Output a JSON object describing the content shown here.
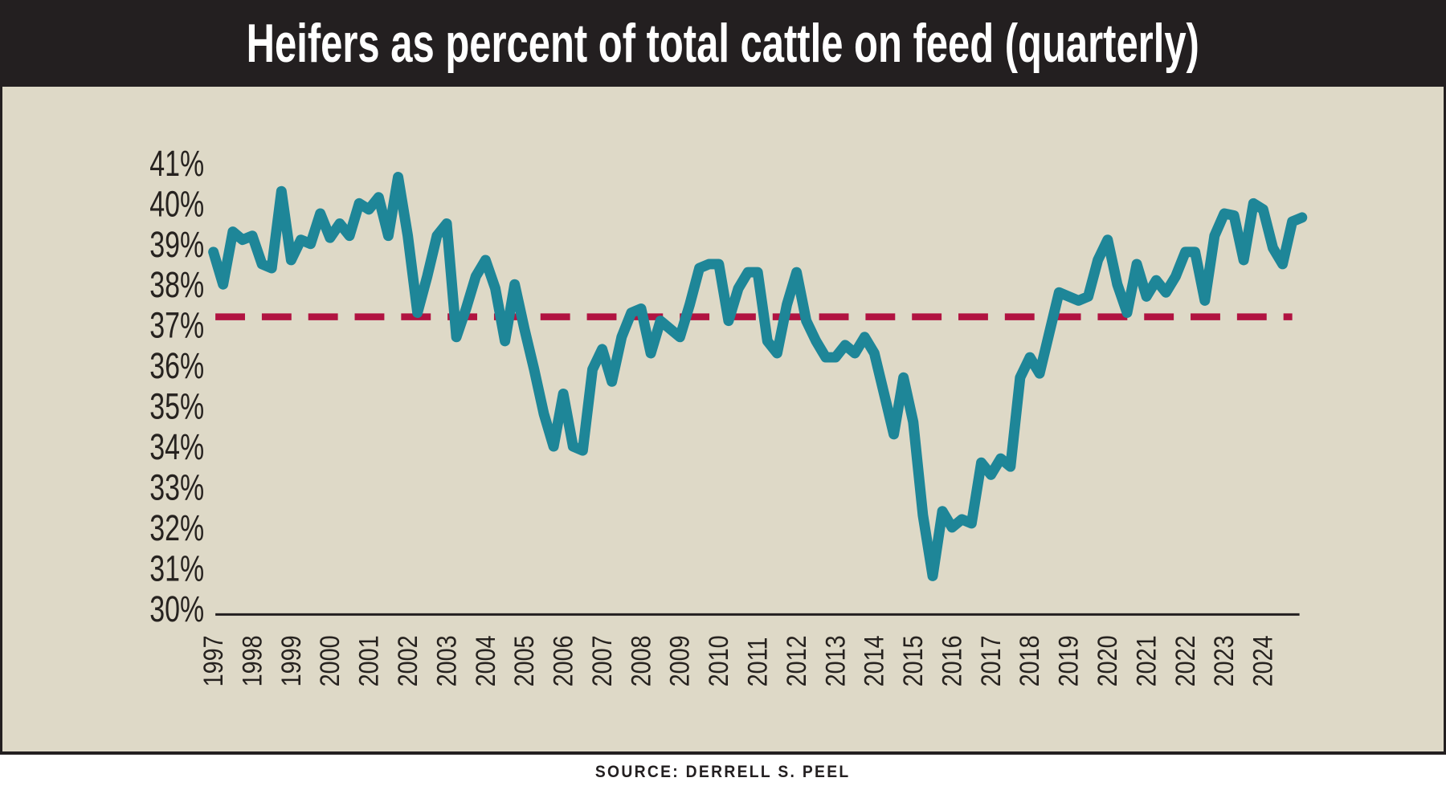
{
  "header": {
    "title": "Heifers as percent of total cattle on feed (quarterly)"
  },
  "footer": {
    "source_label": "SOURCE: DERRELL S. PEEL"
  },
  "colors": {
    "header_bg": "#231f20",
    "title_text": "#ffffff",
    "panel_bg": "#ded9c7",
    "axis_text": "#26221f",
    "axis_line": "#231f20",
    "series_line": "#1e8698",
    "reference_line": "#b11341",
    "footer_bg": "#ffffff",
    "footer_text": "#231f20"
  },
  "chart_data": {
    "type": "line",
    "title": "Heifers as percent of total cattle on feed (quarterly)",
    "frequency": "quarterly",
    "x_start": "1997 Q1",
    "x_end": "2025 Q1",
    "y_unit": "percent",
    "ylim": [
      30,
      41
    ],
    "grid": false,
    "legend": false,
    "x_tick_labels": [
      "1997",
      "1998",
      "1999",
      "2000",
      "2001",
      "2002",
      "2003",
      "2004",
      "2005",
      "2006",
      "2007",
      "2008",
      "2009",
      "2010",
      "2011",
      "2012",
      "2013",
      "2014",
      "2015",
      "2016",
      "2017",
      "2018",
      "2019",
      "2020",
      "2021",
      "2022",
      "2023",
      "2024"
    ],
    "y_tick_labels": [
      "41%",
      "40%",
      "39%",
      "38%",
      "37%",
      "36%",
      "35%",
      "34%",
      "33%",
      "32%",
      "31%",
      "30%"
    ],
    "reference_line": {
      "value": 37.2,
      "style": "dashed"
    },
    "series": [
      {
        "name": "Heifers as percent of total cattle on feed",
        "values": [
          38.8,
          38.0,
          39.3,
          39.1,
          39.2,
          38.5,
          38.4,
          40.3,
          38.6,
          39.1,
          39.0,
          39.75,
          39.15,
          39.5,
          39.2,
          40.0,
          39.85,
          40.15,
          39.2,
          40.65,
          39.2,
          37.3,
          38.2,
          39.2,
          39.5,
          36.7,
          37.4,
          38.2,
          38.6,
          37.9,
          36.6,
          38.0,
          36.9,
          35.9,
          34.8,
          34.0,
          35.3,
          34.0,
          33.9,
          35.9,
          36.4,
          35.6,
          36.7,
          37.3,
          37.4,
          36.3,
          37.1,
          36.9,
          36.7,
          37.5,
          38.4,
          38.5,
          38.5,
          37.1,
          37.9,
          38.3,
          38.3,
          36.6,
          36.3,
          37.5,
          38.3,
          37.1,
          36.6,
          36.2,
          36.2,
          36.5,
          36.3,
          36.7,
          36.3,
          35.3,
          34.3,
          35.7,
          34.6,
          32.3,
          30.8,
          32.4,
          32.0,
          32.2,
          32.1,
          33.6,
          33.3,
          33.7,
          33.5,
          35.7,
          36.2,
          35.8,
          36.8,
          37.8,
          37.7,
          37.6,
          37.7,
          38.6,
          39.1,
          38.0,
          37.3,
          38.5,
          37.7,
          38.1,
          37.8,
          38.2,
          38.8,
          38.8,
          37.6,
          39.2,
          39.75,
          39.7,
          38.6,
          40.0,
          39.85,
          38.9,
          38.5,
          39.55,
          39.65
        ]
      }
    ]
  }
}
